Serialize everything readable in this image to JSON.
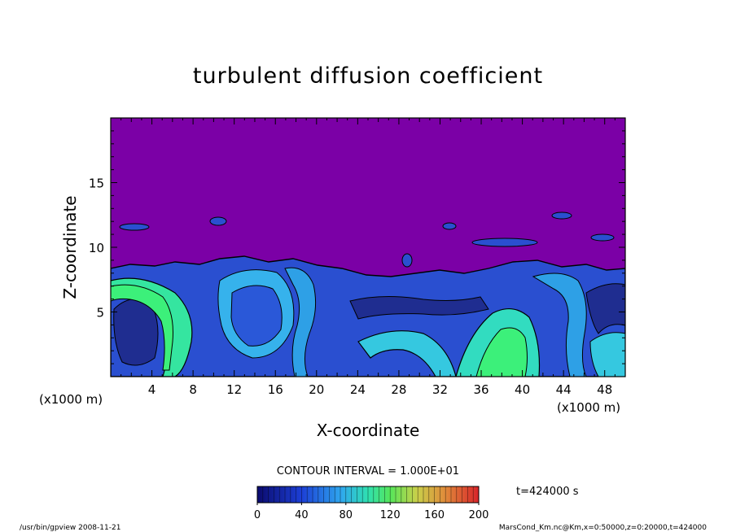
{
  "chart_data": {
    "type": "heatmap",
    "title": "turbulent diffusion coefficient",
    "xlabel": "X-coordinate",
    "ylabel": "Z-coordinate",
    "x_unit_left": "(x1000 m)",
    "x_unit_right": "(x1000 m)",
    "xlim": [
      0,
      50
    ],
    "ylim": [
      0,
      20
    ],
    "x_ticks": [
      4,
      8,
      12,
      16,
      20,
      24,
      28,
      32,
      36,
      40,
      44,
      48
    ],
    "y_ticks": [
      5,
      10,
      15
    ],
    "contour_interval_text": "CONTOUR INTERVAL = 1.000E+01",
    "time_text": "t=424000 s",
    "colorbar": {
      "min": 0,
      "max": 200,
      "ticks": [
        0,
        40,
        80,
        120,
        160,
        200
      ]
    },
    "colors": {
      "background": "#7b00a6",
      "low": "#1a1f7a",
      "mid_low": "#2a54d8",
      "mid": "#3aa8e8",
      "mid_high": "#31d8b8",
      "high": "#3cf07a"
    },
    "footer_left": "/usr/bin/gpview   2008-11-21",
    "footer_right": "MarsCond_Km.nc@Km,x=0:50000,z=0:20000,t=424000"
  }
}
